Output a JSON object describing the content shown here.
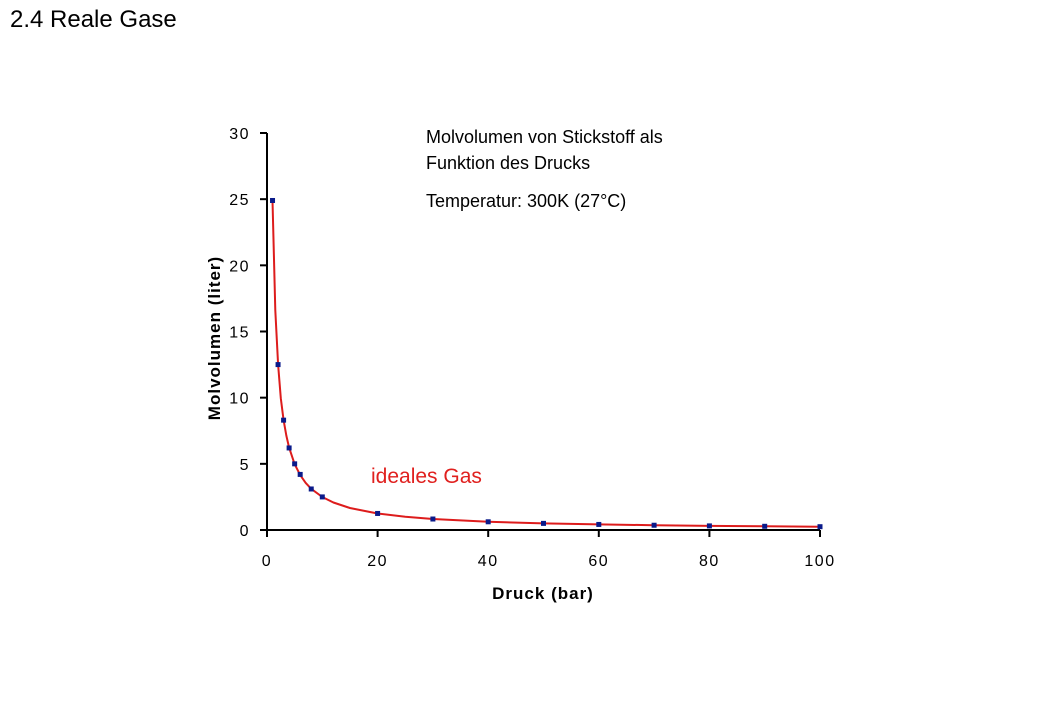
{
  "slide": {
    "title": "2.4 Reale Gase"
  },
  "colors": {
    "curve": "#dd1c1c",
    "points": "#0a1a8a",
    "axis": "#000000",
    "ideal_label": "#e0201e"
  },
  "chart_data": {
    "type": "scatter",
    "title_lines": [
      "Molvolumen von Stickstoff als",
      "Funktion des Drucks"
    ],
    "subtitle": "Temperatur: 300K  (27°C)",
    "xlabel": "Druck (bar)",
    "ylabel": "Molvolumen (liter)",
    "xlim": [
      0,
      100
    ],
    "ylim": [
      0,
      30
    ],
    "xticks": [
      0,
      20,
      40,
      60,
      80,
      100
    ],
    "yticks": [
      0,
      5,
      10,
      15,
      20,
      25,
      30
    ],
    "grid": false,
    "series": [
      {
        "name": "ideales Gas",
        "line": {
          "x": [
            1,
            1.5,
            2,
            2.5,
            3,
            3.5,
            4,
            5,
            6,
            7,
            8,
            10,
            12,
            15,
            20,
            25,
            30,
            40,
            50,
            60,
            70,
            80,
            90,
            100
          ],
          "y": [
            24.9,
            16.6,
            12.5,
            9.96,
            8.3,
            7.11,
            6.23,
            4.98,
            4.15,
            3.56,
            3.11,
            2.49,
            2.08,
            1.66,
            1.25,
            1.0,
            0.83,
            0.62,
            0.5,
            0.42,
            0.36,
            0.31,
            0.28,
            0.25
          ]
        },
        "points": {
          "x": [
            1,
            2,
            3,
            4,
            5,
            6,
            8,
            10,
            20,
            30,
            40,
            50,
            60,
            70,
            80,
            90,
            100
          ],
          "y": [
            24.9,
            12.5,
            8.3,
            6.2,
            5.0,
            4.2,
            3.1,
            2.5,
            1.25,
            0.83,
            0.62,
            0.5,
            0.42,
            0.36,
            0.31,
            0.28,
            0.25
          ]
        }
      }
    ]
  }
}
